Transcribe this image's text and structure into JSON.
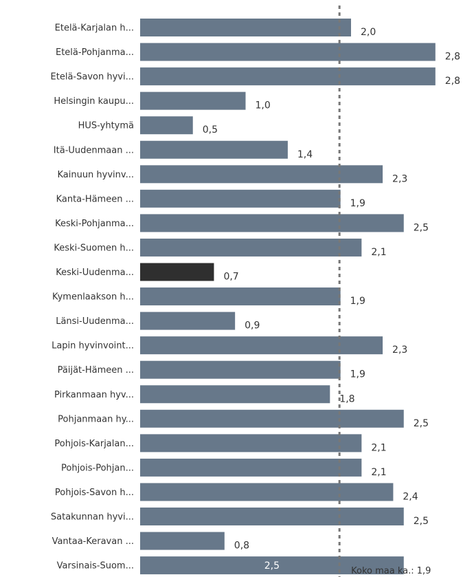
{
  "chart_data": {
    "type": "bar",
    "orientation": "horizontal",
    "categories": [
      "Etelä-Karjalan h...",
      "Etelä-Pohjanma...",
      "Etelä-Savon hyvi...",
      "Helsingin kaupu...",
      "HUS-yhtymä",
      "Itä-Uudenmaan ...",
      "Kainuun hyvinv...",
      "Kanta-Hämeen ...",
      "Keski-Pohjanma...",
      "Keski-Suomen h...",
      "Keski-Uudenma...",
      "Kymenlaakson h...",
      "Länsi-Uudenma...",
      "Lapin hyvinvoint...",
      "Päijät-Hämeen ...",
      "Pirkanmaan hyv...",
      "Pohjanmaan hy...",
      "Pohjois-Karjalan...",
      "Pohjois-Pohjan...",
      "Pohjois-Savon h...",
      "Satakunnan hyvi...",
      "Vantaa-Keravan ...",
      "Varsinais-Suom..."
    ],
    "values": [
      2.0,
      2.8,
      2.8,
      1.0,
      0.5,
      1.4,
      2.3,
      1.9,
      2.5,
      2.1,
      0.7,
      1.9,
      0.9,
      2.3,
      1.9,
      1.8,
      2.5,
      2.1,
      2.1,
      2.4,
      2.5,
      0.8,
      2.5
    ],
    "value_labels": [
      "2,0",
      "2,8",
      "2,8",
      "1,0",
      "0,5",
      "1,4",
      "2,3",
      "1,9",
      "2,5",
      "2,1",
      "0,7",
      "1,9",
      "0,9",
      "2,3",
      "1,9",
      "1,8",
      "2,5",
      "2,1",
      "2,1",
      "2,4",
      "2,5",
      "0,8",
      "2,5"
    ],
    "highlight_index": 10,
    "reference_line": {
      "value": 1.9,
      "label": "Koko maa ka.: 1,9",
      "style": "dotted"
    },
    "colors": {
      "bar": "#67788a",
      "highlight": "#2f2f2f",
      "reference_line": "#777777",
      "text": "#333333"
    },
    "xlim": [
      0,
      2.82
    ],
    "grid": false,
    "title": "",
    "xlabel": "",
    "ylabel": ""
  }
}
